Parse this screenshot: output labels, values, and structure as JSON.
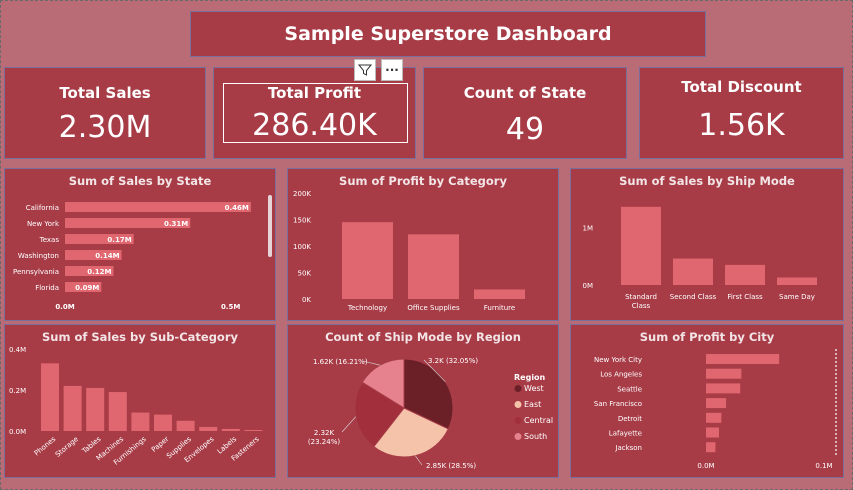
{
  "title": "Sample Superstore Dashboard",
  "kpis": {
    "sales": {
      "label": "Total Sales",
      "value": "2.30M"
    },
    "profit": {
      "label": "Total Profit",
      "value": "286.40K"
    },
    "states": {
      "label": "Count of State",
      "value": "49"
    },
    "discount": {
      "label": "Total Discount",
      "value": "1.56K"
    }
  },
  "toolbar": {
    "more_label": "···"
  },
  "colors": {
    "bar": "#e0666f",
    "panel": "#a73c47",
    "background": "#b96c75"
  },
  "chart_data": [
    {
      "id": "state",
      "type": "bar",
      "orientation": "horizontal",
      "title": "Sum of Sales by State",
      "categories": [
        "California",
        "New York",
        "Texas",
        "Washington",
        "Pennsylvania",
        "Florida"
      ],
      "values": [
        0.46,
        0.31,
        0.17,
        0.14,
        0.12,
        0.09
      ],
      "labels": [
        "0.46M",
        "0.31M",
        "0.17M",
        "0.14M",
        "0.12M",
        "0.09M"
      ],
      "xlim": [
        0,
        0.5
      ],
      "ticks": [
        "0.0M",
        "0.5M"
      ]
    },
    {
      "id": "category",
      "type": "bar",
      "title": "Sum of Profit by Category",
      "categories": [
        "Technology",
        "Office Supplies",
        "Furniture"
      ],
      "values": [
        145000,
        122000,
        18000
      ],
      "ylim": [
        0,
        200000
      ],
      "ticks": [
        "200K",
        "150K",
        "100K",
        "50K",
        "0K"
      ]
    },
    {
      "id": "shipmode",
      "type": "bar",
      "title": "Sum of Sales by Ship Mode",
      "categories": [
        "Standard Class",
        "Second Class",
        "First Class",
        "Same Day"
      ],
      "values": [
        1.36,
        0.46,
        0.35,
        0.13
      ],
      "ylim": [
        0,
        1.6
      ],
      "ticks": [
        "1M",
        "0M"
      ]
    },
    {
      "id": "subcategory",
      "type": "bar",
      "title": "Sum of Sales by Sub-Category",
      "categories": [
        "Phones",
        "Storage",
        "Tables",
        "Machines",
        "Furnishings",
        "Paper",
        "Supplies",
        "Envelopes",
        "Labels",
        "Fasteners"
      ],
      "values": [
        0.33,
        0.22,
        0.21,
        0.19,
        0.09,
        0.08,
        0.05,
        0.02,
        0.01,
        0.003
      ],
      "ylim": [
        0,
        0.4
      ],
      "ticks": [
        "0.4M",
        "0.2M",
        "0.0M"
      ]
    },
    {
      "id": "region",
      "type": "pie",
      "title": "Count of Ship Mode by Region",
      "legend_title": "Region",
      "slices": [
        {
          "name": "West",
          "value": 3200,
          "label": "3.2K (32.05%)",
          "color": "#6b1f27"
        },
        {
          "name": "East",
          "value": 2850,
          "label": "2.85K (28.5%)",
          "color": "#f4c3aa"
        },
        {
          "name": "Central",
          "value": 2320,
          "label": "2.32K (23.24%)",
          "color": "#a1303c"
        },
        {
          "name": "South",
          "value": 1620,
          "label": "1.62K (16.21%)",
          "color": "#e5828d"
        }
      ]
    },
    {
      "id": "city",
      "type": "bar",
      "orientation": "horizontal",
      "title": "Sum of Profit by City",
      "categories": [
        "New York City",
        "Los Angeles",
        "Seattle",
        "San Francisco",
        "Detroit",
        "Lafayette",
        "Jackson"
      ],
      "values": [
        0.062,
        0.03,
        0.029,
        0.017,
        0.013,
        0.011,
        0.008
      ],
      "xlim": [
        0,
        0.1
      ],
      "ticks": [
        "0.0M",
        "0.1M"
      ]
    }
  ]
}
